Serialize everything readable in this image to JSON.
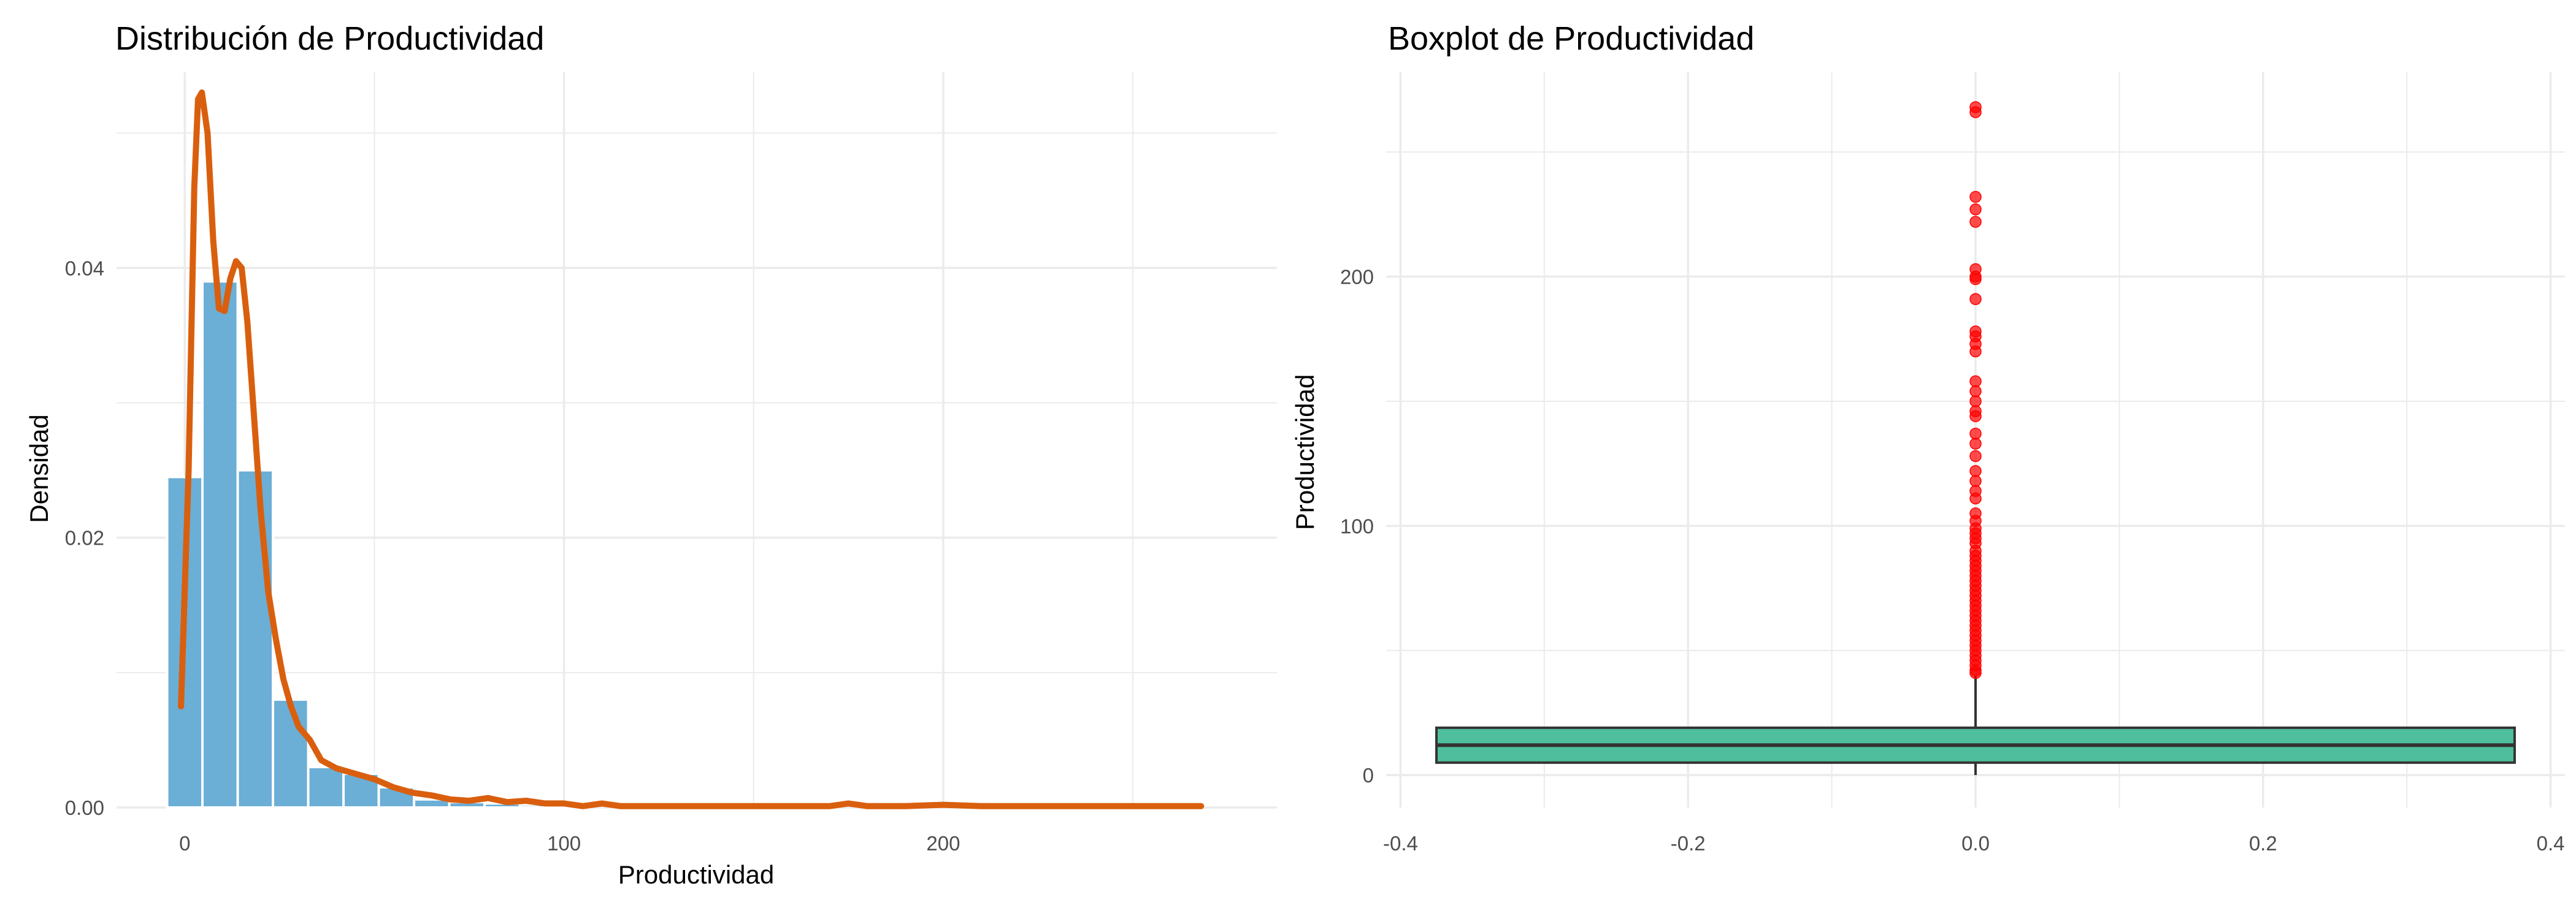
{
  "colors": {
    "bar_fill": "#6baed6",
    "density_line": "#d95f0e",
    "box_fill": "#4fbe9c",
    "outlier": "#ff0000",
    "grid": "#ebebeb",
    "text": "#4d4d4d"
  },
  "chart_data": [
    {
      "type": "histogram",
      "title": "Distribución de Productividad",
      "xlabel": "Productividad",
      "ylabel": "Densidad",
      "xlim": [
        -18,
        288
      ],
      "ylim": [
        0,
        0.0545
      ],
      "x_ticks": [
        0,
        100,
        200
      ],
      "y_ticks": [
        0.0,
        0.02,
        0.04
      ],
      "y_tick_labels": [
        "0.00",
        "0.02",
        "0.04"
      ],
      "grid": true,
      "bin_width": 9.3,
      "bins": [
        {
          "x0": -4.65,
          "value": 0.0245
        },
        {
          "x0": 4.65,
          "value": 0.039
        },
        {
          "x0": 13.95,
          "value": 0.025
        },
        {
          "x0": 23.25,
          "value": 0.008
        },
        {
          "x0": 32.55,
          "value": 0.003
        },
        {
          "x0": 41.85,
          "value": 0.0025
        },
        {
          "x0": 51.15,
          "value": 0.0015
        },
        {
          "x0": 60.45,
          "value": 0.0006
        },
        {
          "x0": 69.75,
          "value": 0.0004
        },
        {
          "x0": 79.05,
          "value": 0.0003
        },
        {
          "x0": 88.35,
          "value": 0.0002
        },
        {
          "x0": 97.65,
          "value": 0.0001
        }
      ],
      "density": {
        "name": "density",
        "x": [
          -1,
          1,
          2.5,
          3.5,
          4.5,
          6,
          7.5,
          9,
          10.5,
          12,
          13.5,
          15,
          16.5,
          18,
          20,
          22,
          24,
          26,
          28,
          30,
          33,
          36,
          40,
          45,
          50,
          55,
          60,
          65,
          70,
          75,
          80,
          85,
          90,
          95,
          100,
          105,
          110,
          115,
          120,
          130,
          140,
          150,
          160,
          170,
          175,
          180,
          190,
          200,
          210,
          220,
          230,
          240,
          250,
          260,
          268
        ],
        "y": [
          0.0075,
          0.025,
          0.046,
          0.0525,
          0.053,
          0.05,
          0.042,
          0.037,
          0.0368,
          0.0392,
          0.0405,
          0.04,
          0.036,
          0.03,
          0.022,
          0.016,
          0.0125,
          0.0095,
          0.0075,
          0.006,
          0.005,
          0.0035,
          0.0029,
          0.0025,
          0.0021,
          0.0015,
          0.0011,
          0.0009,
          0.0006,
          0.0005,
          0.0007,
          0.0004,
          0.0005,
          0.0003,
          0.0003,
          0.0001,
          0.0003,
          0.0001,
          0.0001,
          0.0001,
          0.0001,
          0.0001,
          0.0001,
          0.0001,
          0.0003,
          0.0001,
          0.0001,
          0.0002,
          0.0001,
          0.0001,
          0.0001,
          0.0001,
          0.0001,
          0.0001,
          0.0001
        ]
      }
    },
    {
      "type": "boxplot",
      "title": "Boxplot de Productividad",
      "xlabel": "",
      "ylabel": "Productividad",
      "xlim": [
        -0.41,
        0.41
      ],
      "ylim": [
        -13,
        282
      ],
      "x_ticks": [
        -0.4,
        -0.2,
        0.0,
        0.2,
        0.4
      ],
      "x_tick_labels": [
        "-0.4",
        "-0.2",
        "0.0",
        "0.2",
        "0.4"
      ],
      "y_ticks": [
        0,
        100,
        200
      ],
      "grid": true,
      "box": {
        "x_center": 0,
        "half_width": 0.375,
        "q1": 5,
        "median": 12,
        "q3": 19,
        "whisker_low": 0,
        "whisker_high": 40
      },
      "outliers": [
        268,
        266,
        232,
        227,
        222,
        203,
        200,
        199,
        191,
        178,
        176,
        173,
        170,
        158,
        154,
        150,
        146,
        144,
        137,
        133,
        128,
        122,
        118,
        114,
        111,
        105,
        102,
        99,
        97,
        95,
        93,
        90,
        88,
        86,
        84,
        82,
        80,
        78,
        76,
        74,
        72,
        70,
        68,
        66,
        64,
        62,
        60,
        58,
        56,
        54,
        52,
        50,
        48,
        46,
        44,
        42,
        41
      ]
    }
  ]
}
